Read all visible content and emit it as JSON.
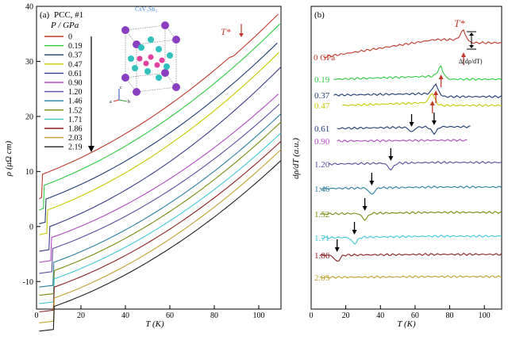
{
  "chart_data": [
    {
      "type": "line",
      "panel_label": "(a)",
      "title": "PCC, #1",
      "legend_title": "P / GPa",
      "xlabel": "T (K)",
      "ylabel": "ρ (μΩ cm)",
      "xlim": [
        0,
        110
      ],
      "ylim": [
        -15,
        40
      ],
      "xticks": [
        "0",
        "20",
        "40",
        "60",
        "80",
        "100"
      ],
      "yticks": [
        "-10",
        "0",
        "10",
        "20",
        "30",
        "40"
      ],
      "annotation": "T*",
      "inset_label": "CsV₃Sb₅",
      "axes_labels": [
        "a",
        "b",
        "c"
      ],
      "series": [
        {
          "name": "0",
          "color": "#c0392b",
          "low": 9.5,
          "tc": 2.7,
          "end": 39.5
        },
        {
          "name": "0.19",
          "color": "#2ecc40",
          "low": 7.5,
          "tc": 3.5,
          "end": 37.0
        },
        {
          "name": "0.37",
          "color": "#1f3b73",
          "low": 5.0,
          "tc": 4.3,
          "end": 34.0
        },
        {
          "name": "0.47",
          "color": "#c8c800",
          "low": 3.0,
          "tc": 5.0,
          "end": 32.0
        },
        {
          "name": "0.61",
          "color": "#3a3a8a",
          "low": 0.0,
          "tc": 6.0,
          "end": 29.0
        },
        {
          "name": "0.90",
          "color": "#b04ac0",
          "low": -2.0,
          "tc": 6.8,
          "end": 24.5
        },
        {
          "name": "1.20",
          "color": "#5b4aa0",
          "low": -4.0,
          "tc": 7.3,
          "end": 22.5
        },
        {
          "name": "1.46",
          "color": "#2a7fa0",
          "low": -6.5,
          "tc": 7.8,
          "end": 20.5
        },
        {
          "name": "1.52",
          "color": "#7a8a10",
          "low": -8.0,
          "tc": 8.0,
          "end": 19.0
        },
        {
          "name": "1.71",
          "color": "#40c8d8",
          "low": -9.5,
          "tc": 8.0,
          "end": 17.0
        },
        {
          "name": "1.86",
          "color": "#8b2020",
          "low": -11.0,
          "tc": 8.0,
          "end": 15.5
        },
        {
          "name": "2.03",
          "color": "#c0a030",
          "low": -13.0,
          "tc": 8.0,
          "end": 14.0
        },
        {
          "name": "2.19",
          "color": "#202020",
          "low": -14.5,
          "tc": 8.0,
          "end": 12.0
        }
      ]
    },
    {
      "type": "line",
      "panel_label": "(b)",
      "xlabel": "T (K)",
      "ylabel": "dρ/dT (a.u.)",
      "xlim": [
        0,
        110
      ],
      "xticks": [
        "0",
        "20",
        "40",
        "60",
        "80",
        "100"
      ],
      "annotation": "T*",
      "delta_label": "Δ(dρ/dT)",
      "series": [
        {
          "name": "0 GPa",
          "color": "#c0392b",
          "tstar": 88,
          "arrow": "red"
        },
        {
          "name": "0.19",
          "color": "#2ecc40",
          "tstar": 75,
          "arrow": "red"
        },
        {
          "name": "0.37",
          "color": "#1f3b73",
          "tstar": 72,
          "arrow": "red"
        },
        {
          "name": "0.47",
          "color": "#c8c800",
          "tstar": 70,
          "arrow": "red"
        },
        {
          "name": "0.61",
          "color": "#1f3b73",
          "tstar": 71,
          "dip2": 58,
          "arrow": "black"
        },
        {
          "name": "0.90",
          "color": "#b04ac0",
          "tstar": null
        },
        {
          "name": "1.20",
          "color": "#5b4aa0",
          "tstar": 46,
          "arrow": "black"
        },
        {
          "name": "1.46",
          "color": "#2a7fa0",
          "tstar": 35,
          "arrow": "black"
        },
        {
          "name": "1.52",
          "color": "#7a8a10",
          "tstar": 31,
          "arrow": "black"
        },
        {
          "name": "1.71",
          "color": "#40c8d8",
          "tstar": 25,
          "arrow": "black"
        },
        {
          "name": "1.86",
          "color": "#8b2020",
          "tstar": 15,
          "arrow": "black"
        },
        {
          "name": "2.03",
          "color": "#c0a030",
          "tstar": null
        }
      ]
    }
  ]
}
